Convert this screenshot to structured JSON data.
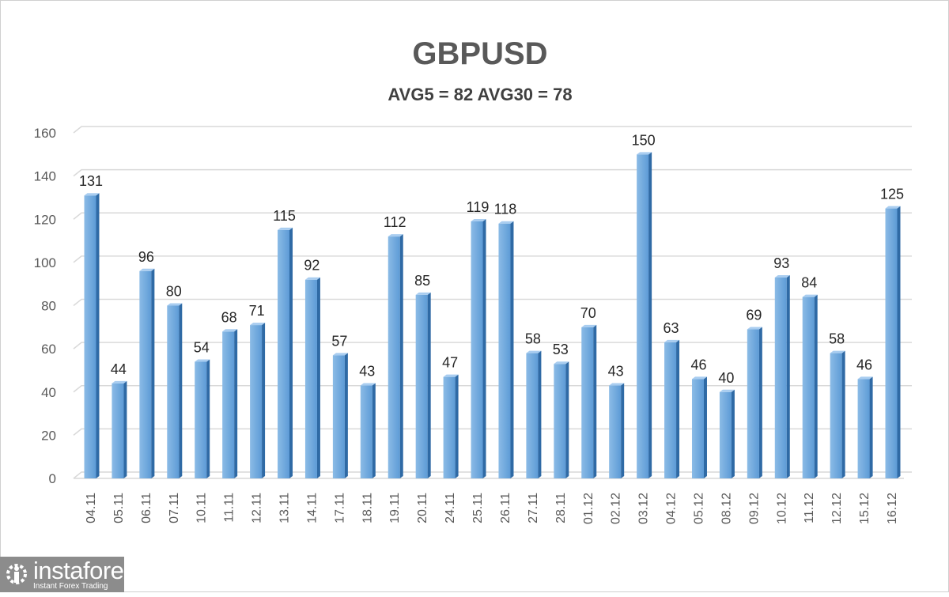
{
  "chart_data": {
    "type": "bar",
    "title": "GBPUSD",
    "subtitle": "AVG5 = 82 AVG30 = 78",
    "xlabel": "",
    "ylabel": "",
    "ylim": [
      0,
      160
    ],
    "yticks": [
      0,
      20,
      40,
      60,
      80,
      100,
      120,
      140,
      160
    ],
    "grid": true,
    "legend": "none",
    "categories": [
      "04.11",
      "05.11",
      "06.11",
      "07.11",
      "10.11",
      "11.11",
      "12.11",
      "13.11",
      "14.11",
      "17.11",
      "18.11",
      "19.11",
      "20.11",
      "24.11",
      "25.11",
      "26.11",
      "27.11",
      "28.11",
      "01.12",
      "02.12",
      "03.12",
      "04.12",
      "05.12",
      "08.12",
      "09.12",
      "10.12",
      "11.12",
      "12.12",
      "15.12",
      "16.12"
    ],
    "values": [
      131,
      44,
      96,
      80,
      54,
      68,
      71,
      115,
      92,
      57,
      43,
      112,
      85,
      47,
      119,
      118,
      58,
      53,
      70,
      43,
      150,
      63,
      46,
      40,
      69,
      93,
      84,
      58,
      46,
      125
    ],
    "bar_color": "#5b9bd5"
  },
  "logo": {
    "brand": "instaforex",
    "tagline": "Instant Forex Trading"
  }
}
